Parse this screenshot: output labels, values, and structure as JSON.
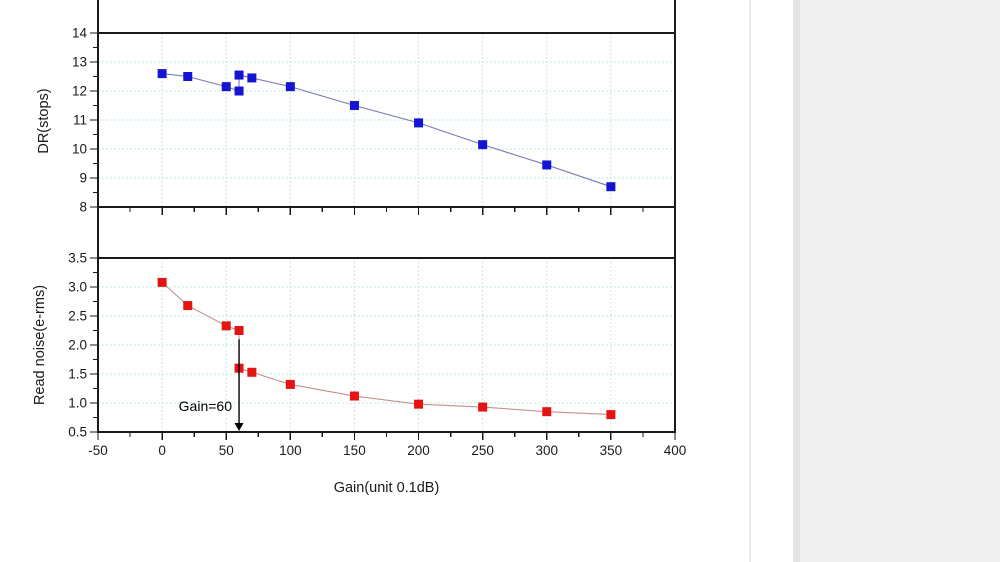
{
  "page": {
    "background": "#ffffff",
    "divider_color": "#e9e9e9",
    "right_panel_color": "#efefef",
    "right_panel_edge_color": "#e4e4e4"
  },
  "chart_data": {
    "type": "line",
    "title": "",
    "xlabel": "Gain(unit 0.1dB)",
    "xlim": [
      -50,
      400
    ],
    "x_ticks": [
      -50,
      0,
      50,
      100,
      150,
      200,
      250,
      300,
      350,
      400
    ],
    "x_tick_labels": [
      "-50",
      "0",
      "50",
      "100",
      "150",
      "200",
      "250",
      "300",
      "350",
      "400"
    ],
    "x_minor_ticks": [
      -25,
      25,
      75,
      125,
      175,
      225,
      275,
      325,
      375
    ],
    "grid": true,
    "grid_color": "#aadfdf",
    "frame_color": "#1a1a1a",
    "legend": "none",
    "panels": [
      {
        "name": "dynamic-range-panel",
        "ylabel": "DR(stops)",
        "ylim": [
          8,
          14
        ],
        "y_ticks": [
          14,
          13,
          12,
          11,
          10,
          9,
          8
        ],
        "y_tick_labels": [
          "14",
          "13",
          "12",
          "11",
          "10",
          "9",
          "8"
        ],
        "y_minor_ticks": [
          13.5,
          12.5,
          11.5,
          10.5,
          9.5,
          8.5
        ],
        "series": [
          {
            "name": "DR",
            "marker": "square",
            "marker_color": "#1414d2",
            "line_color": "#7a7ab2",
            "x": [
              0,
              20,
              50,
              60,
              60,
              70,
              100,
              150,
              200,
              250,
              300,
              350
            ],
            "y": [
              12.6,
              12.5,
              12.15,
              12.0,
              12.55,
              12.45,
              12.15,
              11.5,
              10.9,
              10.15,
              9.45,
              8.7
            ]
          }
        ]
      },
      {
        "name": "read-noise-panel",
        "ylabel": "Read noise(e-rms)",
        "ylim": [
          0.5,
          3.5
        ],
        "y_ticks": [
          3.5,
          3.0,
          2.5,
          2.0,
          1.5,
          1.0,
          0.5
        ],
        "y_tick_labels": [
          "3.5",
          "3.0",
          "2.5",
          "2.0",
          "1.5",
          "1.0",
          "0.5"
        ],
        "y_minor_ticks": [
          3.25,
          2.75,
          2.25,
          1.75,
          1.25,
          0.75
        ],
        "series": [
          {
            "name": "Read noise",
            "marker": "square",
            "marker_color": "#e41414",
            "line_color": "#c49090",
            "x": [
              0,
              20,
              50,
              60,
              60,
              70,
              100,
              150,
              200,
              250,
              300,
              350
            ],
            "y": [
              3.08,
              2.68,
              2.33,
              2.25,
              1.6,
              1.53,
              1.32,
              1.12,
              0.98,
              0.93,
              0.85,
              0.8
            ]
          }
        ],
        "annotation": {
          "text": "Gain=60",
          "arrow_x": 60,
          "arrow_y_from": 2.2,
          "arrow_y_to": 0.5,
          "arrow_color": "#000000"
        }
      }
    ]
  }
}
